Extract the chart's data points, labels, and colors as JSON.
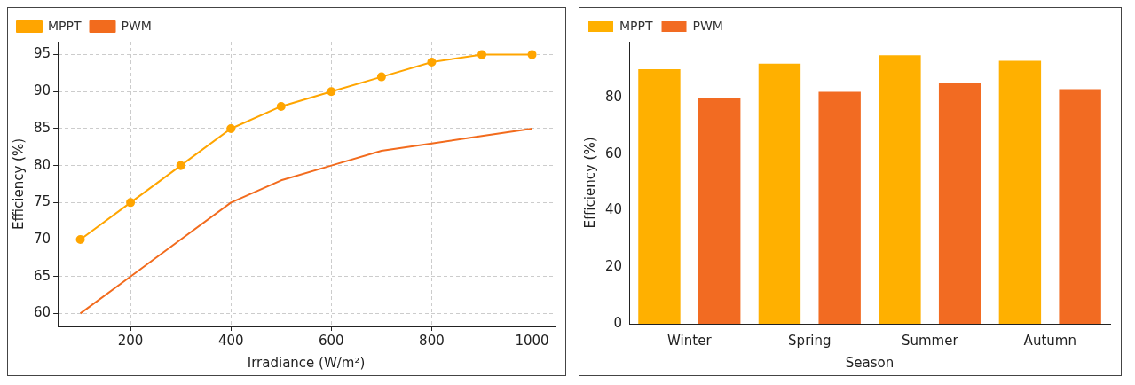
{
  "chart_data": [
    {
      "type": "line",
      "xlabel": "Irradiance (W/m²)",
      "ylabel": "Efficiency (%)",
      "x": [
        100,
        200,
        300,
        400,
        500,
        600,
        700,
        800,
        900,
        1000
      ],
      "series": [
        {
          "name": "MPPT",
          "color": "#ffa500",
          "marker": "circle",
          "values": [
            70,
            75,
            80,
            85,
            88,
            90,
            92,
            94,
            95,
            95
          ]
        },
        {
          "name": "PWM",
          "color": "#f26b1d",
          "marker": "none",
          "values": [
            60,
            65,
            70,
            75,
            78,
            80,
            82,
            83,
            84,
            85
          ]
        }
      ],
      "xlim": [
        55,
        1045
      ],
      "xticks": [
        200,
        400,
        600,
        800,
        1000
      ],
      "ylim": [
        58.25,
        96.75
      ],
      "yticks": [
        60,
        65,
        70,
        75,
        80,
        85,
        90,
        95
      ],
      "grid": true,
      "legend": "top left"
    },
    {
      "type": "bar",
      "xlabel": "Season",
      "ylabel": "Efficiency (%)",
      "categories": [
        "Winter",
        "Spring",
        "Summer",
        "Autumn"
      ],
      "series": [
        {
          "name": "MPPT",
          "color": "#ffb000",
          "values": [
            90,
            92,
            95,
            93
          ]
        },
        {
          "name": "PWM",
          "color": "#f26b22",
          "values": [
            80,
            82,
            85,
            83
          ]
        }
      ],
      "ylim": [
        0,
        99.75
      ],
      "yticks": [
        0,
        20,
        40,
        60,
        80
      ],
      "legend": "top left"
    }
  ]
}
